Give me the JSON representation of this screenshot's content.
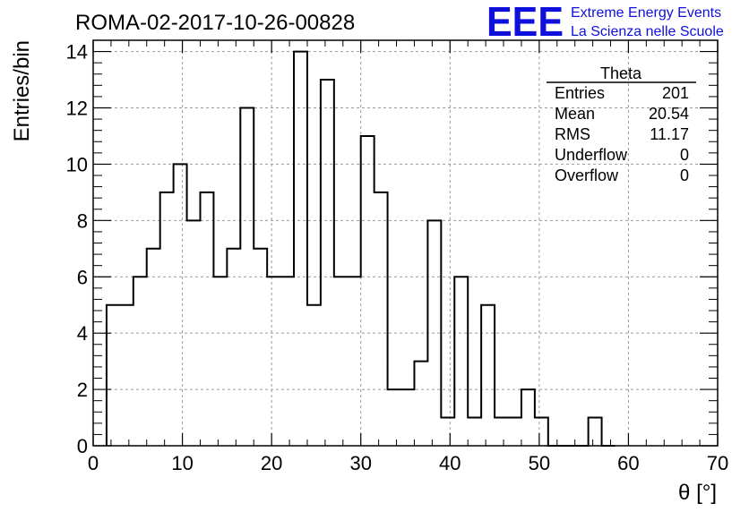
{
  "header": {
    "run_title": "ROMA-02-2017-10-26-00828",
    "logo_text": "EEE",
    "org_line1": "Extreme Energy Events",
    "org_line2": "La Scienza nelle Scuole"
  },
  "stats": {
    "title": "Theta",
    "rows": [
      {
        "label": "Entries",
        "value": "201"
      },
      {
        "label": "Mean",
        "value": "20.54"
      },
      {
        "label": "RMS",
        "value": "11.17"
      },
      {
        "label": "Underflow",
        "value": "0"
      },
      {
        "label": "Overflow",
        "value": "0"
      }
    ]
  },
  "colors": {
    "accent": "#1010dd",
    "line": "#000000",
    "grid": "#999999"
  },
  "chart_data": {
    "type": "bar",
    "histogram": true,
    "xlabel": "θ [°]",
    "ylabel": "Entries/bin",
    "xlim": [
      0,
      70
    ],
    "ylim": [
      0,
      14.4
    ],
    "grid": true,
    "x_ticks": [
      0,
      10,
      20,
      30,
      40,
      50,
      60,
      70
    ],
    "y_ticks": [
      0,
      2,
      4,
      6,
      8,
      10,
      12,
      14
    ],
    "bin_width": 1.5,
    "bin_edges_start": 1.5,
    "values": [
      5,
      5,
      6,
      7,
      9,
      10,
      8,
      9,
      6,
      7,
      12,
      7,
      6,
      6,
      14,
      5,
      13,
      6,
      6,
      11,
      9,
      2,
      2,
      3,
      8,
      1,
      6,
      1,
      5,
      1,
      1,
      2,
      1,
      0,
      0,
      0,
      1,
      0
    ]
  }
}
